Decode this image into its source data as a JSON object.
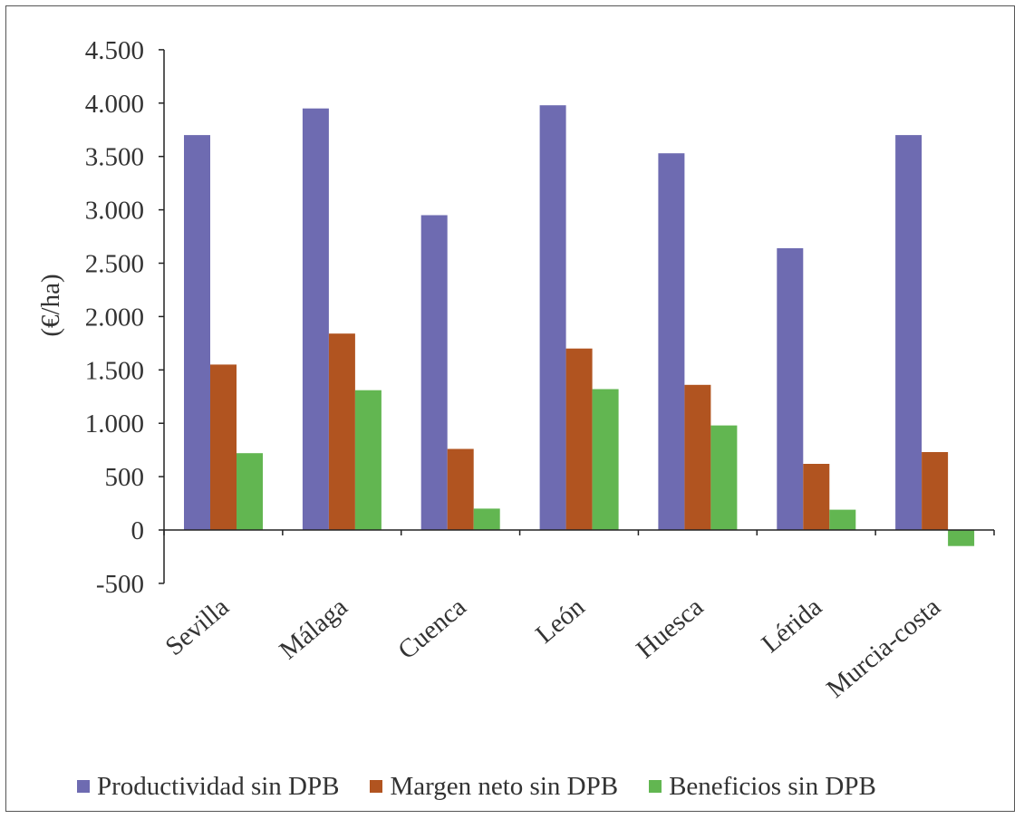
{
  "chart_data": {
    "type": "bar",
    "ylabel": "(€/ha)",
    "categories": [
      "Sevilla",
      "Málaga",
      "Cuenca",
      "León",
      "Huesca",
      "Lérida",
      "Murcia-costa"
    ],
    "ylim": [
      -500,
      4500
    ],
    "yticks": [
      -500,
      0,
      500,
      1000,
      1500,
      2000,
      2500,
      3000,
      3500,
      4000,
      4500
    ],
    "ytick_labels": [
      "-500",
      "0",
      "500",
      "1.000",
      "1.500",
      "2.000",
      "2.500",
      "3.000",
      "3.500",
      "4.000",
      "4.500"
    ],
    "grid": false,
    "legend_position": "bottom",
    "series": [
      {
        "name": "Productividad sin DPB",
        "color": "#6e6bb1",
        "values": [
          3700,
          3950,
          2950,
          3980,
          3530,
          2640,
          3700
        ]
      },
      {
        "name": "Margen neto sin DPB",
        "color": "#b15420",
        "values": [
          1550,
          1840,
          760,
          1700,
          1360,
          620,
          730
        ]
      },
      {
        "name": "Beneficios sin DPB",
        "color": "#62b651",
        "values": [
          720,
          1310,
          200,
          1320,
          980,
          190,
          -150
        ]
      }
    ]
  }
}
